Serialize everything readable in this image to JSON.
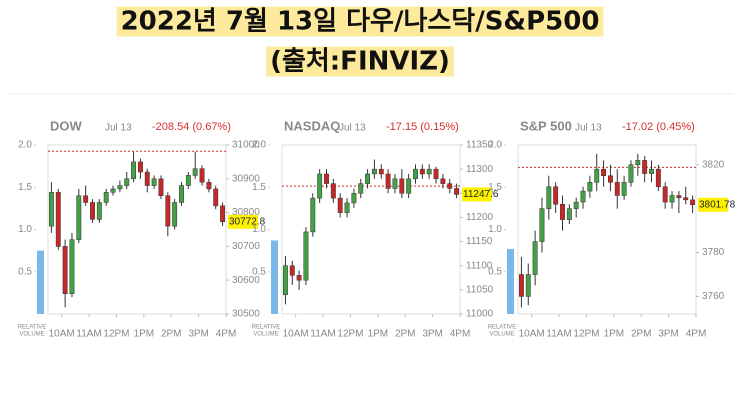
{
  "header": {
    "title": "2022년 7월 13일 다우/나스닥/S&P500",
    "source": "(출처:FINVIZ)"
  },
  "chart_data": [
    {
      "type": "candlestick",
      "title": "DOW",
      "date": "Jul 13",
      "change": "-208.54 (0.67%)",
      "up_color": "#43a047",
      "down_color": "#c62828",
      "prev_close": 30981.33,
      "ylim": [
        30500,
        31000
      ],
      "yticks": [
        30500,
        30600,
        30700,
        30800,
        30900,
        31000
      ],
      "xlim": [
        0,
        26
      ],
      "xticks": [
        {
          "value": 2,
          "label": "10AM"
        },
        {
          "value": 6,
          "label": "11AM"
        },
        {
          "value": 10,
          "label": "12PM"
        },
        {
          "value": 14,
          "label": "1PM"
        },
        {
          "value": 18,
          "label": "2PM"
        },
        {
          "value": 22,
          "label": "3PM"
        },
        {
          "value": 26,
          "label": "4PM"
        }
      ],
      "volume_lim": [
        0,
        2
      ],
      "volume_ticks": [
        0.5,
        {
          "value": 1,
          "label": "1.0"
        },
        1.5,
        {
          "value": 2,
          "label": "2.0"
        }
      ],
      "relative_volume": 0.75,
      "volume_color": "#7ab8ea",
      "volume_label": [
        "RELATIVE",
        "VOLUME"
      ],
      "ohlc": [
        [
          30760,
          30890,
          30740,
          30860
        ],
        [
          30860,
          30870,
          30690,
          30700
        ],
        [
          30700,
          30720,
          30520,
          30560
        ],
        [
          30560,
          30740,
          30550,
          30720
        ],
        [
          30720,
          30870,
          30710,
          30850
        ],
        [
          30850,
          30880,
          30820,
          30830
        ],
        [
          30830,
          30840,
          30770,
          30780
        ],
        [
          30780,
          30840,
          30770,
          30830
        ],
        [
          30830,
          30870,
          30820,
          30860
        ],
        [
          30860,
          30880,
          30850,
          30870
        ],
        [
          30870,
          30895,
          30860,
          30880
        ],
        [
          30880,
          30920,
          30870,
          30900
        ],
        [
          30900,
          30980,
          30890,
          30950
        ],
        [
          30950,
          30960,
          30900,
          30920
        ],
        [
          30920,
          30930,
          30860,
          30880
        ],
        [
          30880,
          30910,
          30870,
          30900
        ],
        [
          30900,
          30910,
          30840,
          30850
        ],
        [
          30850,
          30860,
          30730,
          30760
        ],
        [
          30760,
          30840,
          30750,
          30830
        ],
        [
          30830,
          30890,
          30820,
          30880
        ],
        [
          30880,
          30920,
          30870,
          30910
        ],
        [
          30910,
          30980,
          30900,
          30930
        ],
        [
          30930,
          30940,
          30880,
          30890
        ],
        [
          30890,
          30900,
          30860,
          30870
        ],
        [
          30870,
          30880,
          30810,
          30820
        ],
        [
          30820,
          30830,
          30760,
          30772.8
        ]
      ]
    },
    {
      "type": "candlestick",
      "title": "NASDAQ",
      "date": "Jul 13",
      "change": "-17.15 (0.15%)",
      "up_color": "#43a047",
      "down_color": "#c62828",
      "prev_close": 11264.73,
      "ylim": [
        11000,
        11350
      ],
      "yticks": [
        11000,
        11050,
        11100,
        11150,
        11200,
        11250,
        11300,
        11350
      ],
      "xlim": [
        0,
        26
      ],
      "xticks": [
        {
          "value": 2,
          "label": "10AM"
        },
        {
          "value": 6,
          "label": "11AM"
        },
        {
          "value": 10,
          "label": "12PM"
        },
        {
          "value": 14,
          "label": "1PM"
        },
        {
          "value": 18,
          "label": "2PM"
        },
        {
          "value": 22,
          "label": "3PM"
        },
        {
          "value": 26,
          "label": "4PM"
        }
      ],
      "volume_lim": [
        0,
        2
      ],
      "volume_ticks": [
        0.5,
        {
          "value": 1,
          "label": "1.0"
        },
        1.5,
        {
          "value": 2,
          "label": "2.0"
        }
      ],
      "relative_volume": 0.87,
      "volume_color": "#7ab8ea",
      "volume_label": [
        "RELATIVE",
        "VOLUME"
      ],
      "ohlc": [
        [
          11040,
          11120,
          11020,
          11100
        ],
        [
          11100,
          11110,
          11060,
          11080
        ],
        [
          11080,
          11090,
          11050,
          11070
        ],
        [
          11070,
          11180,
          11060,
          11170
        ],
        [
          11170,
          11250,
          11160,
          11240
        ],
        [
          11240,
          11300,
          11230,
          11290
        ],
        [
          11290,
          11300,
          11260,
          11270
        ],
        [
          11270,
          11280,
          11230,
          11240
        ],
        [
          11240,
          11250,
          11200,
          11210
        ],
        [
          11210,
          11240,
          11200,
          11230
        ],
        [
          11230,
          11260,
          11220,
          11250
        ],
        [
          11250,
          11280,
          11240,
          11270
        ],
        [
          11270,
          11300,
          11260,
          11290
        ],
        [
          11290,
          11320,
          11280,
          11300
        ],
        [
          11300,
          11310,
          11280,
          11290
        ],
        [
          11290,
          11300,
          11250,
          11260
        ],
        [
          11260,
          11290,
          11250,
          11280
        ],
        [
          11280,
          11300,
          11240,
          11250
        ],
        [
          11250,
          11290,
          11240,
          11280
        ],
        [
          11280,
          11310,
          11270,
          11300
        ],
        [
          11300,
          11310,
          11280,
          11290
        ],
        [
          11290,
          11310,
          11280,
          11300
        ],
        [
          11300,
          11305,
          11270,
          11280
        ],
        [
          11280,
          11290,
          11260,
          11270
        ],
        [
          11270,
          11280,
          11250,
          11260
        ],
        [
          11260,
          11270,
          11240,
          11247.6
        ]
      ]
    },
    {
      "type": "candlestick",
      "title": "S&P 500",
      "date": "Jul 13",
      "change": "-17.02 (0.45%)",
      "up_color": "#43a047",
      "down_color": "#c62828",
      "prev_close": 3818.8,
      "ylim": [
        3752,
        3829
      ],
      "yticks": [
        3760,
        3780,
        3820
      ],
      "xlim": [
        0,
        26
      ],
      "xticks": [
        {
          "value": 2,
          "label": "10AM"
        },
        {
          "value": 6,
          "label": "11AM"
        },
        {
          "value": 10,
          "label": "12PM"
        },
        {
          "value": 14,
          "label": "1PM"
        },
        {
          "value": 18,
          "label": "2PM"
        },
        {
          "value": 22,
          "label": "3PM"
        },
        {
          "value": 26,
          "label": "4PM"
        }
      ],
      "volume_lim": [
        0,
        2
      ],
      "volume_ticks": [
        0.5,
        {
          "value": 1,
          "label": "1.0"
        },
        1.5,
        {
          "value": 2,
          "label": "2.0"
        }
      ],
      "relative_volume": 0.77,
      "volume_color": "#7ab8ea",
      "volume_label": [
        "RELATIVE",
        "VOLUME"
      ],
      "ohlc": [
        [
          3770,
          3778,
          3755,
          3760
        ],
        [
          3760,
          3775,
          3756,
          3770
        ],
        [
          3770,
          3790,
          3765,
          3785
        ],
        [
          3785,
          3805,
          3780,
          3800
        ],
        [
          3800,
          3815,
          3795,
          3810
        ],
        [
          3810,
          3812,
          3798,
          3802
        ],
        [
          3802,
          3806,
          3790,
          3795
        ],
        [
          3795,
          3802,
          3793,
          3800
        ],
        [
          3800,
          3805,
          3796,
          3803
        ],
        [
          3803,
          3810,
          3800,
          3808
        ],
        [
          3808,
          3815,
          3805,
          3812
        ],
        [
          3812,
          3825,
          3808,
          3818
        ],
        [
          3818,
          3822,
          3810,
          3815
        ],
        [
          3815,
          3820,
          3808,
          3812
        ],
        [
          3812,
          3818,
          3800,
          3806
        ],
        [
          3806,
          3815,
          3804,
          3812
        ],
        [
          3812,
          3822,
          3810,
          3820
        ],
        [
          3820,
          3825,
          3815,
          3822
        ],
        [
          3822,
          3824,
          3812,
          3816
        ],
        [
          3816,
          3822,
          3812,
          3818
        ],
        [
          3818,
          3820,
          3808,
          3810
        ],
        [
          3810,
          3812,
          3800,
          3803
        ],
        [
          3803,
          3808,
          3800,
          3806
        ],
        [
          3806,
          3808,
          3798,
          3805
        ],
        [
          3805,
          3810,
          3802,
          3804
        ],
        [
          3804,
          3806,
          3798,
          3801.78
        ]
      ]
    }
  ]
}
